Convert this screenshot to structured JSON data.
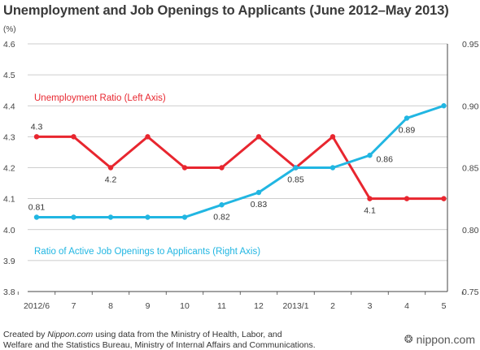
{
  "title": "Unemployment and Job Openings to Applicants (June 2012–May 2013)",
  "colors": {
    "unemployment": "#e8262f",
    "job_ratio": "#21b6e2",
    "grid": "#bdbdbd",
    "axis": "#444444"
  },
  "chart_data": {
    "type": "line",
    "categories": [
      "2012/6",
      "7",
      "8",
      "9",
      "10",
      "11",
      "12",
      "2013/1",
      "2",
      "3",
      "4",
      "5"
    ],
    "left_axis": {
      "unit": "(%)",
      "ylim": [
        3.8,
        4.6
      ],
      "ticks": [
        "3.8",
        "3.9",
        "4.0",
        "4.1",
        "4.2",
        "4.3",
        "4.4",
        "4.5",
        "4.6"
      ]
    },
    "right_axis": {
      "ylim": [
        0.75,
        0.95
      ],
      "ticks": [
        "0.75",
        "0.80",
        "0.85",
        "0.90",
        "0.95"
      ]
    },
    "grid": true,
    "series": [
      {
        "name": "Unemployment Ratio (Left Axis)",
        "axis": "left",
        "values": [
          4.3,
          4.3,
          4.2,
          4.3,
          4.2,
          4.2,
          4.3,
          4.2,
          4.3,
          4.1,
          4.1,
          4.1
        ]
      },
      {
        "name": "Ratio of Active Job Openings to Applicants (Right Axis)",
        "axis": "right",
        "values": [
          0.81,
          0.81,
          0.81,
          0.81,
          0.81,
          0.82,
          0.83,
          0.85,
          0.85,
          0.86,
          0.89,
          0.9
        ]
      }
    ],
    "data_labels": [
      {
        "series": 0,
        "index": 0,
        "text": "4.3",
        "pos": "above"
      },
      {
        "series": 0,
        "index": 2,
        "text": "4.2",
        "pos": "below"
      },
      {
        "series": 0,
        "index": 9,
        "text": "4.1",
        "pos": "below"
      },
      {
        "series": 1,
        "index": 0,
        "text": "0.81",
        "pos": "above"
      },
      {
        "series": 1,
        "index": 5,
        "text": "0.82",
        "pos": "below"
      },
      {
        "series": 1,
        "index": 6,
        "text": "0.83",
        "pos": "below"
      },
      {
        "series": 1,
        "index": 7,
        "text": "0.85",
        "pos": "below"
      },
      {
        "series": 1,
        "index": 9,
        "text": "0.86",
        "pos": "right"
      },
      {
        "series": 1,
        "index": 10,
        "text": "0.89",
        "pos": "below"
      }
    ]
  },
  "footer": {
    "line1_pre": "Created by ",
    "line1_em": "Nippon.com",
    "line1_post": " using data from the Ministry of Health, Labor, and",
    "line2": "Welfare and the Statistics Bureau, Ministry of Internal Affairs and Communications."
  },
  "brand": {
    "text": "nippon.com",
    "icon": "nippon-logo-icon"
  }
}
